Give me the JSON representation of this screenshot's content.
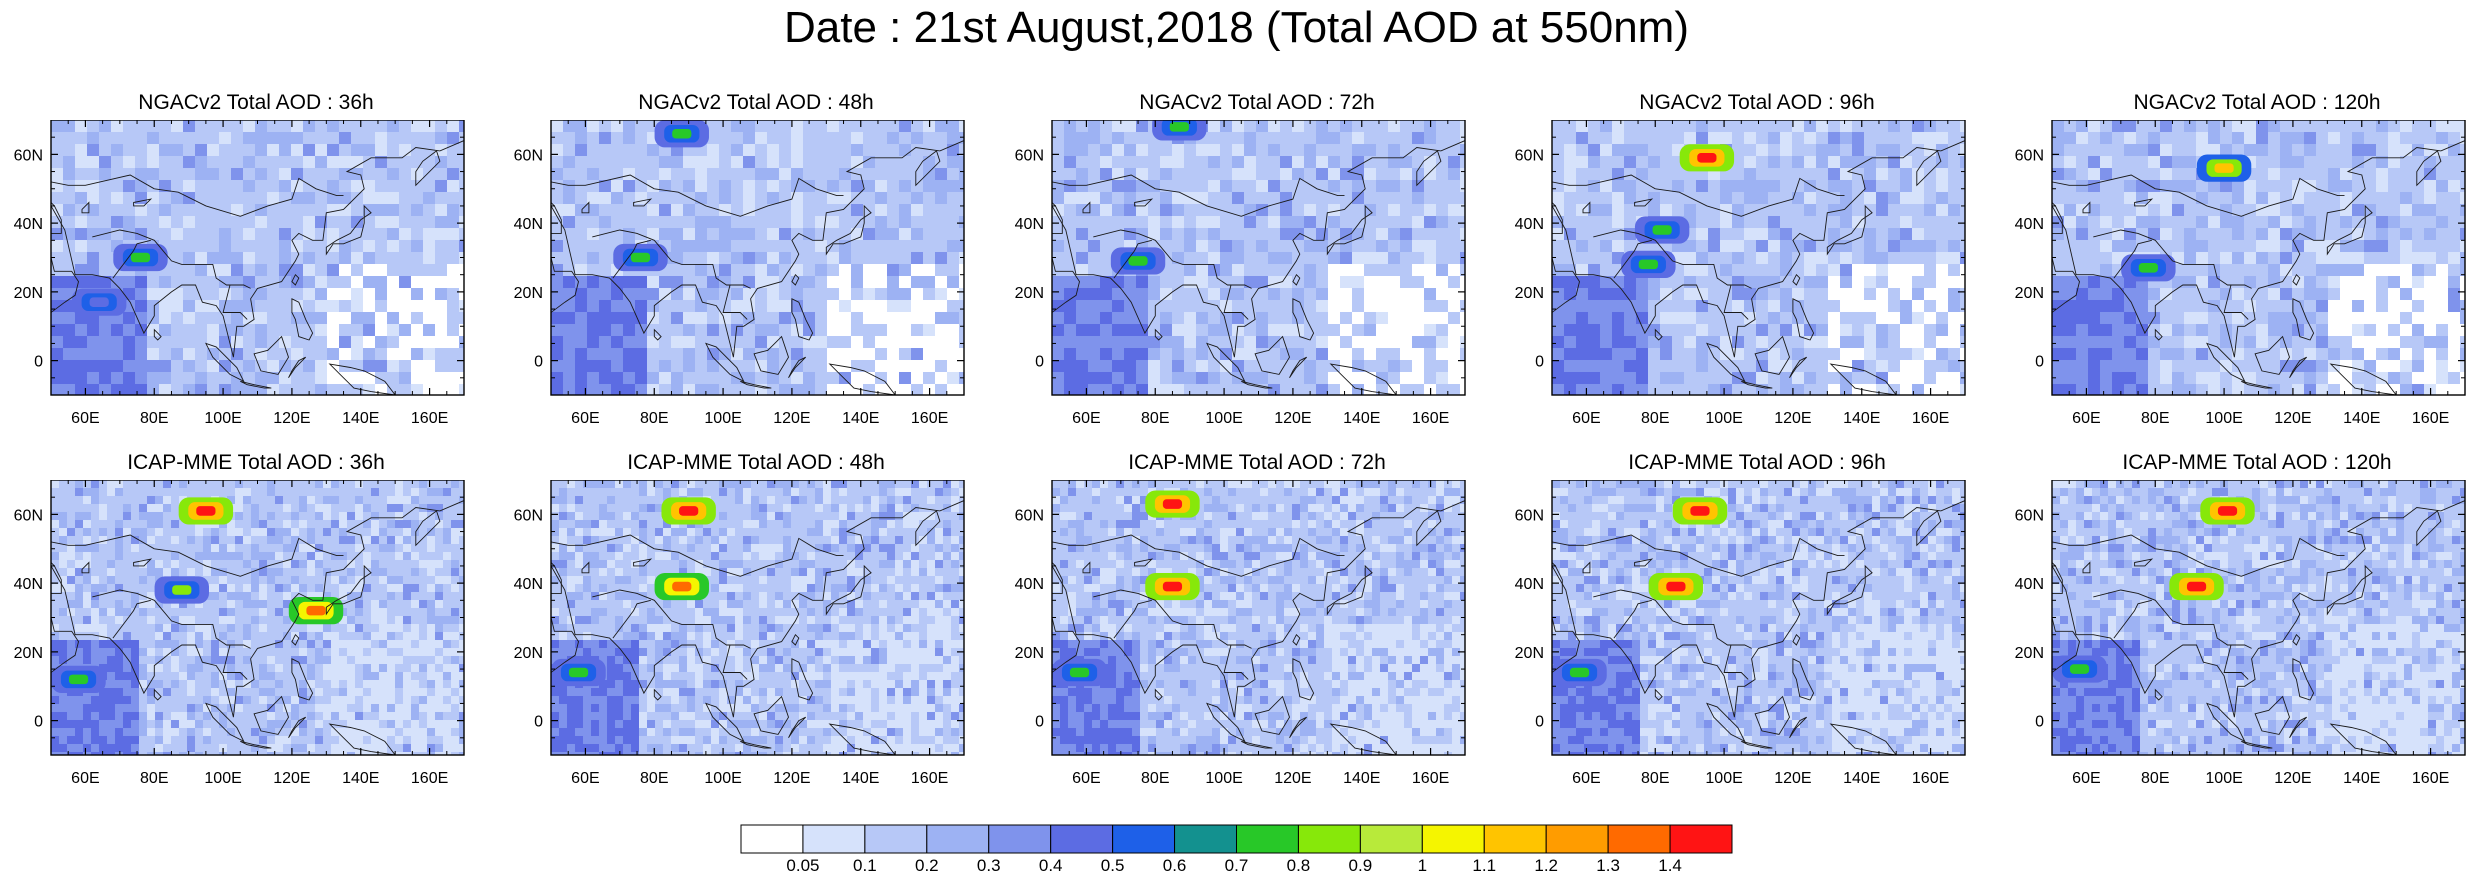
{
  "title": "Date : 21st August,2018 (Total AOD at 550nm)",
  "panels": [
    {
      "title": "NGACv2 Total AOD : 36h"
    },
    {
      "title": "NGACv2 Total AOD : 48h"
    },
    {
      "title": "NGACv2 Total AOD : 72h"
    },
    {
      "title": "NGACv2 Total AOD : 96h"
    },
    {
      "title": "NGACv2 Total AOD : 120h"
    },
    {
      "title": "ICAP-MME Total AOD : 36h"
    },
    {
      "title": "ICAP-MME Total AOD : 48h"
    },
    {
      "title": "ICAP-MME Total AOD : 72h"
    },
    {
      "title": "ICAP-MME Total AOD : 96h"
    },
    {
      "title": "ICAP-MME Total AOD : 120h"
    }
  ],
  "lat_ticks": [
    "60N",
    "40N",
    "20N",
    "0"
  ],
  "lon_ticks": [
    "60E",
    "80E",
    "100E",
    "120E",
    "140E",
    "160E"
  ],
  "lat_values": [
    60,
    40,
    20,
    0
  ],
  "lon_values": [
    60,
    80,
    100,
    120,
    140,
    160
  ],
  "map_extent": {
    "lon": [
      50,
      170
    ],
    "lat": [
      -10,
      70
    ]
  },
  "colorbar": {
    "labels": [
      "0.05",
      "0.1",
      "0.2",
      "0.3",
      "0.4",
      "0.5",
      "0.6",
      "0.7",
      "0.8",
      "0.9",
      "1",
      "1.1",
      "1.2",
      "1.3",
      "1.4"
    ],
    "colors": [
      "#ffffff",
      "#d6e2fb",
      "#b7c8f7",
      "#9db2f3",
      "#7f93ec",
      "#5c6ce3",
      "#1e60e8",
      "#13918f",
      "#28c828",
      "#87e80a",
      "#b8ea3a",
      "#f5f500",
      "#ffc400",
      "#ff9c00",
      "#ff6a00",
      "#ff1414"
    ]
  },
  "plumes": {
    "panel_0": [
      {
        "lon": 76,
        "lat": 30,
        "level": 8
      },
      {
        "lon": 64,
        "lat": 17,
        "level": 5
      }
    ],
    "panel_1": [
      {
        "lon": 76,
        "lat": 30,
        "level": 8
      },
      {
        "lon": 88,
        "lat": 66,
        "level": 8
      }
    ],
    "panel_2": [
      {
        "lon": 75,
        "lat": 29,
        "level": 8
      },
      {
        "lon": 87,
        "lat": 68,
        "level": 8
      }
    ],
    "panel_3": [
      {
        "lon": 78,
        "lat": 28,
        "level": 8
      },
      {
        "lon": 95,
        "lat": 59,
        "level": 15
      },
      {
        "lon": 82,
        "lat": 38,
        "level": 8
      }
    ],
    "panel_4": [
      {
        "lon": 100,
        "lat": 56,
        "level": 12
      },
      {
        "lon": 78,
        "lat": 27,
        "level": 8
      }
    ],
    "panel_5": [
      {
        "lon": 95,
        "lat": 61,
        "level": 15
      },
      {
        "lon": 88,
        "lat": 38,
        "level": 9
      },
      {
        "lon": 58,
        "lat": 12,
        "level": 8
      },
      {
        "lon": 127,
        "lat": 32,
        "level": 14
      }
    ],
    "panel_6": [
      {
        "lon": 90,
        "lat": 61,
        "level": 15
      },
      {
        "lon": 88,
        "lat": 39,
        "level": 14
      },
      {
        "lon": 58,
        "lat": 14,
        "level": 8
      }
    ],
    "panel_7": [
      {
        "lon": 85,
        "lat": 63,
        "level": 15
      },
      {
        "lon": 85,
        "lat": 39,
        "level": 15
      },
      {
        "lon": 58,
        "lat": 14,
        "level": 8
      }
    ],
    "panel_8": [
      {
        "lon": 93,
        "lat": 61,
        "level": 15
      },
      {
        "lon": 86,
        "lat": 39,
        "level": 15
      },
      {
        "lon": 58,
        "lat": 14,
        "level": 8
      }
    ],
    "panel_9": [
      {
        "lon": 101,
        "lat": 61,
        "level": 15
      },
      {
        "lon": 92,
        "lat": 39,
        "level": 15
      },
      {
        "lon": 58,
        "lat": 15,
        "level": 8
      }
    ]
  }
}
